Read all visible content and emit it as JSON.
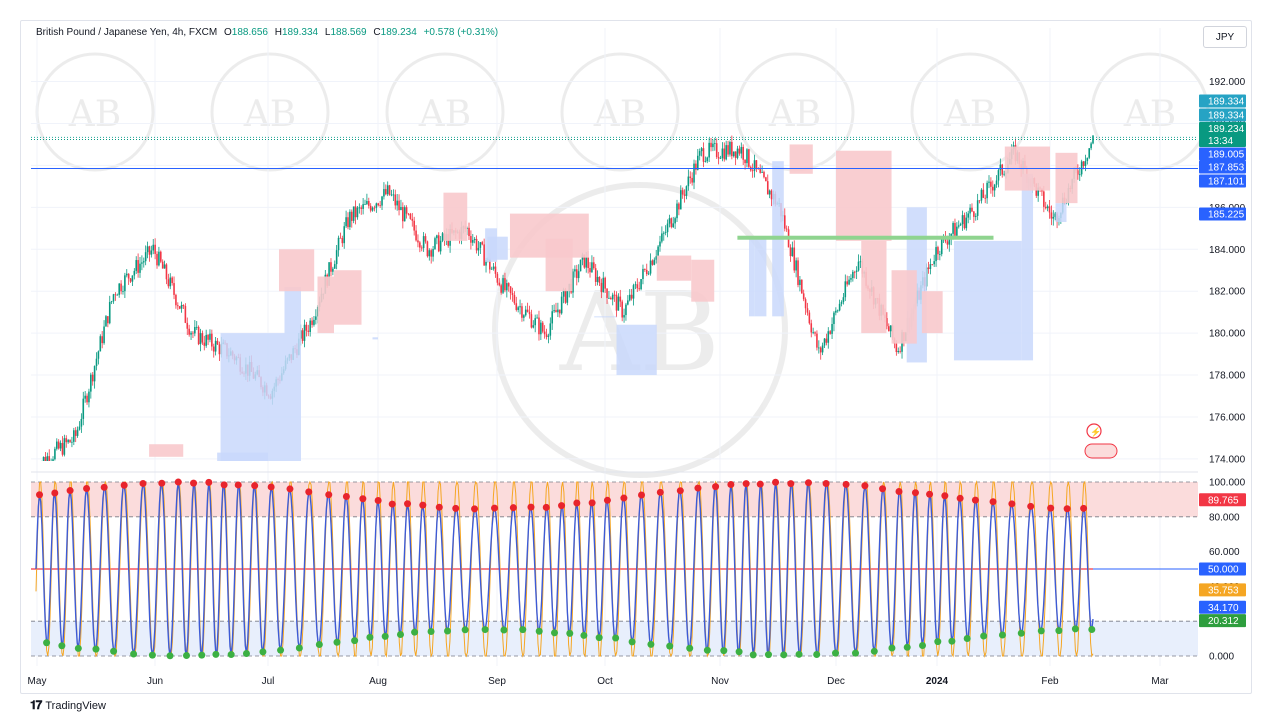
{
  "header": {
    "symbol": "British Pound / Japanese Yen, 4h, FXCM",
    "open_label": "O",
    "open": "188.656",
    "high_label": "H",
    "high": "189.334",
    "low_label": "L",
    "low": "188.569",
    "close_label": "C",
    "close": "189.234",
    "change": "+0.578 (+0.31%)"
  },
  "currency_button": "JPY",
  "footer": {
    "brand": "TradingView"
  },
  "colors": {
    "up": "#089981",
    "down": "#f23645",
    "support_zone": "#c9d8fb",
    "resistance_zone": "#f8c9cc",
    "level_line": "#2962ff",
    "green_level": "#8fd48f",
    "stoch_k": "#3d5bd6",
    "stoch_d": "#f5a623",
    "overbought_fill": "#fbdcdc",
    "oversold_fill": "#e8effc"
  },
  "chart_data": [
    {
      "type": "candlestick",
      "title": "British Pound / Japanese Yen, 4h, FXCM",
      "ylim": [
        173.9,
        193.6
      ],
      "y_ticks": [
        "192.000",
        "190.000",
        "188.000",
        "186.000",
        "184.000",
        "182.000",
        "180.000",
        "178.000",
        "176.000",
        "174.000"
      ],
      "x_ticks": [
        "May",
        "Jun",
        "Jul",
        "Aug",
        "Sep",
        "Oct",
        "Nov",
        "Dec",
        "2024",
        "Feb",
        "Mar"
      ],
      "price_path": [
        [
          "May",
          173.7
        ],
        [
          "Jun (early)",
          175.0
        ],
        [
          "Jun (mid)",
          182.0
        ],
        [
          "Jun (late)",
          184.0
        ],
        [
          "Jul (mid)",
          180.0
        ],
        [
          "Jul (late)",
          179.0
        ],
        [
          "Jul (end)",
          177.2
        ],
        [
          "Aug (early)",
          180.5
        ],
        [
          "Aug (mid)",
          185.5
        ],
        [
          "Aug (late)",
          186.7
        ],
        [
          "Sep (early)",
          184.0
        ],
        [
          "Sep (mid)",
          185.0
        ],
        [
          "Sep (late)",
          182.0
        ],
        [
          "Oct (early)",
          180.0
        ],
        [
          "Oct (mid)",
          183.5
        ],
        [
          "Oct (late)",
          181.0
        ],
        [
          "Nov (early)",
          184.5
        ],
        [
          "Nov (mid)",
          188.6
        ],
        [
          "Nov (late)",
          188.8
        ],
        [
          "Dec (early)",
          186.0
        ],
        [
          "Dec (mid)",
          179.0
        ],
        [
          "Dec (late)",
          183.5
        ],
        [
          "Dec (end)",
          179.2
        ],
        [
          "2024 (early)",
          184.0
        ],
        [
          "Jan (mid)",
          186.0
        ],
        [
          "Jan (late)",
          188.6
        ],
        [
          "Feb (early)",
          185.4
        ],
        [
          "Feb (mid)",
          189.234
        ]
      ],
      "markers": [
        {
          "label": "189.334",
          "value": 189.334,
          "kind": "high",
          "color": "#26a69a"
        },
        {
          "label": "189.334",
          "value": 189.334,
          "kind": "high_line",
          "color": "#26a69a"
        },
        {
          "label": "189.234",
          "value": 189.234,
          "kind": "last",
          "color": "#089981",
          "countdown": "13:34"
        },
        {
          "label": "189.005",
          "value": 189.005,
          "kind": "level",
          "color": "#2962ff"
        },
        {
          "label": "187.853",
          "value": 187.853,
          "kind": "level",
          "color": "#2962ff"
        },
        {
          "label": "187.101",
          "value": 187.101,
          "kind": "level",
          "color": "#2962ff"
        },
        {
          "label": "185.225",
          "value": 185.225,
          "kind": "level",
          "color": "#2962ff"
        }
      ]
    },
    {
      "type": "line",
      "ylim": [
        0,
        100
      ],
      "y_ticks": [
        "100.000",
        "80.000",
        "60.000",
        "40.000",
        "20.000",
        "0.000"
      ],
      "overbought": 80,
      "oversold": 20,
      "midline": 50,
      "series": [
        {
          "values_last": 34.17,
          "label": "34.170",
          "color": "#3d5bd6"
        },
        {
          "values_last": 35.753,
          "label": "35.753",
          "color": "#f5a623"
        }
      ],
      "markers": [
        {
          "label": "89.765",
          "value": 89.765,
          "color": "#f23645"
        },
        {
          "label": "50.000",
          "value": 50.0,
          "color": "#2962ff"
        },
        {
          "label": "35.753",
          "value": 35.753,
          "color": "#f5a623"
        },
        {
          "label": "34.170",
          "value": 34.17,
          "color": "#2962ff"
        },
        {
          "label": "20.312",
          "value": 20.312,
          "color": "#2e9e3e"
        }
      ]
    }
  ]
}
